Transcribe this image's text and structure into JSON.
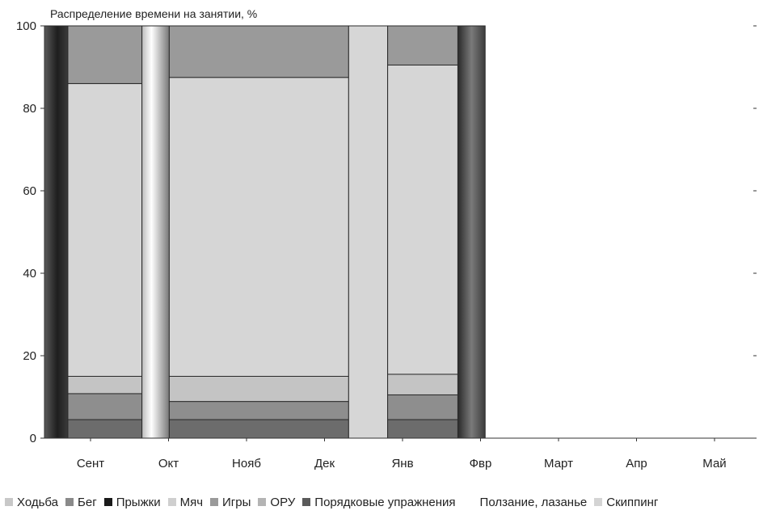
{
  "chart_data": {
    "type": "bar",
    "title": "Распределение времени на занятии, %",
    "xlabel": "",
    "ylabel": "",
    "ylim": [
      0,
      100
    ],
    "y_ticks": [
      "0",
      "20",
      "40",
      "60",
      "80",
      "100"
    ],
    "categories": [
      "Сент",
      "Окт",
      "Нояб",
      "Дек",
      "Янв",
      "Фвр",
      "Март",
      "Апр",
      "Май"
    ],
    "grid": false,
    "legend_position": "bottom",
    "segments": [
      {
        "series": "Прыжки",
        "from": 0,
        "to": 100,
        "x_start": 0.0,
        "x_end": 0.3
      },
      {
        "series": "Порядковые упражнения",
        "from": 0,
        "to": 4.5,
        "x_start": 0.3,
        "x_end": 1.25
      },
      {
        "series": "ОРУ",
        "from": 4.5,
        "to": 10.8,
        "x_start": 0.3,
        "x_end": 1.25
      },
      {
        "series": "Мяч",
        "from": 10.8,
        "to": 15.0,
        "x_start": 0.3,
        "x_end": 1.25
      },
      {
        "series": "Скиппинг",
        "from": 15.0,
        "to": 86.0,
        "x_start": 0.3,
        "x_end": 1.25
      },
      {
        "series": "Игры",
        "from": 86.0,
        "to": 100,
        "x_start": 0.3,
        "x_end": 1.25
      },
      {
        "series": "Ползание, лазанье",
        "from": 0,
        "to": 100,
        "x_start": 1.25,
        "x_end": 1.6
      },
      {
        "series": "Порядковые упражнения",
        "from": 0,
        "to": 4.5,
        "x_start": 1.6,
        "x_end": 3.9
      },
      {
        "series": "ОРУ",
        "from": 4.5,
        "to": 8.9,
        "x_start": 1.6,
        "x_end": 3.9
      },
      {
        "series": "Мяч",
        "from": 8.9,
        "to": 15.0,
        "x_start": 1.6,
        "x_end": 3.9
      },
      {
        "series": "Скиппинг",
        "from": 15.0,
        "to": 87.5,
        "x_start": 1.6,
        "x_end": 3.9
      },
      {
        "series": "Игры",
        "from": 87.5,
        "to": 100,
        "x_start": 1.6,
        "x_end": 3.9
      },
      {
        "series": "Скиппинг",
        "from": 0,
        "to": 100,
        "x_start": 3.9,
        "x_end": 4.4
      },
      {
        "series": "Порядковые упражнения",
        "from": 0,
        "to": 4.5,
        "x_start": 4.4,
        "x_end": 5.3
      },
      {
        "series": "ОРУ",
        "from": 4.5,
        "to": 10.5,
        "x_start": 4.4,
        "x_end": 5.3
      },
      {
        "series": "Мяч",
        "from": 10.5,
        "to": 15.5,
        "x_start": 4.4,
        "x_end": 5.3
      },
      {
        "series": "Скиппинг",
        "from": 15.5,
        "to": 90.5,
        "x_start": 4.4,
        "x_end": 5.3
      },
      {
        "series": "Игры",
        "from": 90.5,
        "to": 100,
        "x_start": 4.4,
        "x_end": 5.3
      },
      {
        "series": "Прыжки",
        "from": 0,
        "to": 100,
        "x_start": 5.3,
        "x_end": 5.65
      }
    ],
    "legend": [
      {
        "label": "Ходьба",
        "color": "#c8c8c8",
        "swatch": true
      },
      {
        "label": "Бег",
        "color": "#8a8a8a",
        "swatch": true
      },
      {
        "label": "Прыжки",
        "color": "#1a1a1a",
        "swatch": true
      },
      {
        "label": "Мяч",
        "color": "#cfcfcf",
        "swatch": true
      },
      {
        "label": "Игры",
        "color": "#9a9a9a",
        "swatch": true
      },
      {
        "label": "ОРУ",
        "color": "#b4b4b4",
        "swatch": true
      },
      {
        "label": "Порядковые упражнения",
        "color": "#5a5a5a",
        "swatch": true
      },
      {
        "label": "Ползание, лазанье",
        "color": "#ffffff",
        "swatch": false
      },
      {
        "label": "Скиппинг",
        "color": "#d4d4d4",
        "swatch": true
      }
    ],
    "series_colors": {
      "Порядковые упражнения": "#6c6c6c",
      "ОРУ": "#8e8e8e",
      "Мяч": "#c4c4c4",
      "Скиппинг": "#d6d6d6",
      "Игры": "#9a9a9a",
      "Прыжки": "#303030",
      "Ползание, лазанье": "#ffffff"
    }
  }
}
